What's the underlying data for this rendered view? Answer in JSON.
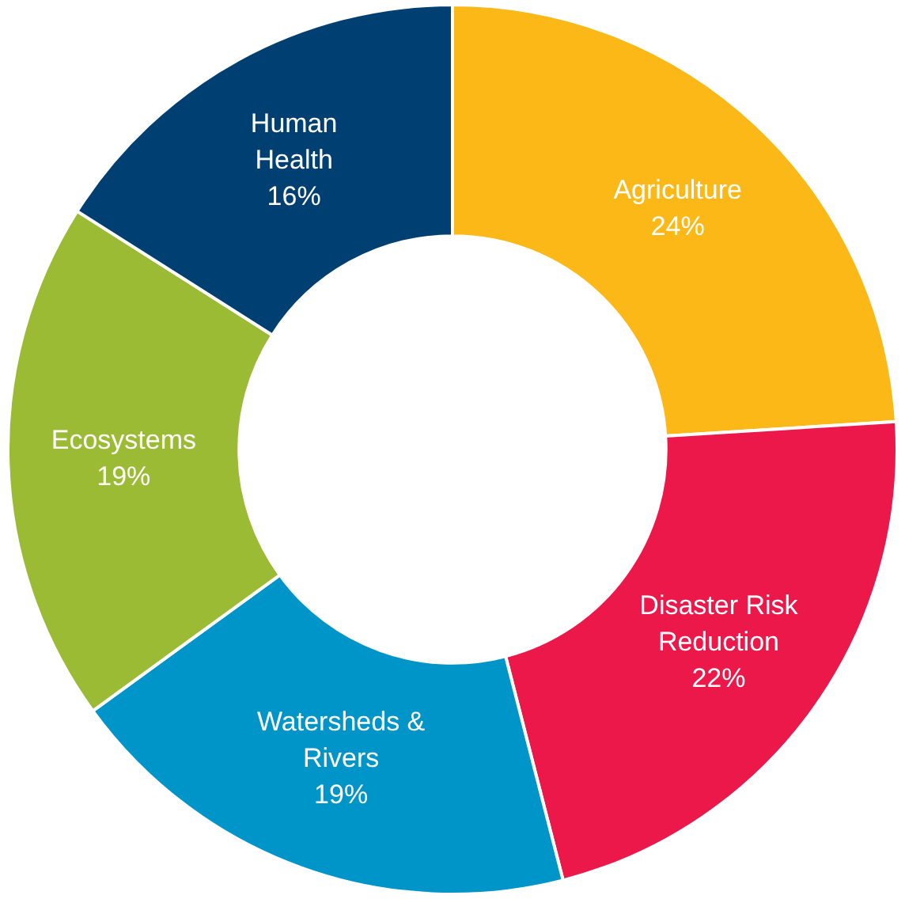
{
  "chart_data": {
    "type": "donut",
    "categories": [
      "Agriculture",
      "Disaster Risk Reduction",
      "Watersheds & Rivers",
      "Ecosystems",
      "Human Health"
    ],
    "values": [
      24,
      22,
      19,
      19,
      16
    ],
    "colors": [
      "#fbb817",
      "#ec1849",
      "#0095c8",
      "#9bbb35",
      "#003f72"
    ],
    "value_labels": [
      "24%",
      "22%",
      "19%",
      "19%",
      "16%"
    ],
    "legend": false
  }
}
